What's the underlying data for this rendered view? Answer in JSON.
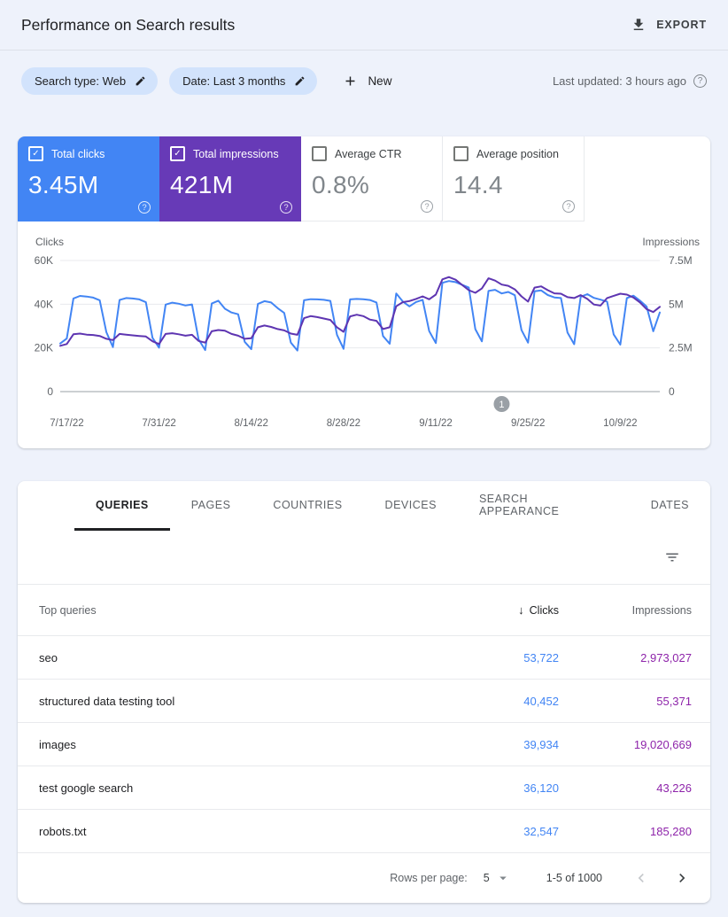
{
  "header": {
    "title": "Performance on Search results",
    "export_label": "EXPORT"
  },
  "filters": {
    "chips": [
      {
        "label": "Search type: Web"
      },
      {
        "label": "Date: Last 3 months"
      }
    ],
    "new_label": "New",
    "last_updated": "Last updated: 3 hours ago"
  },
  "metrics": [
    {
      "label": "Total clicks",
      "value": "3.45M",
      "checked": true,
      "color": "#4285f4"
    },
    {
      "label": "Total impressions",
      "value": "421M",
      "checked": true,
      "color": "#673ab7"
    },
    {
      "label": "Average CTR",
      "value": "0.8%",
      "checked": false,
      "color": "#ffffff"
    },
    {
      "label": "Average position",
      "value": "14.4",
      "checked": false,
      "color": "#ffffff"
    }
  ],
  "chart_data": {
    "type": "line",
    "left_axis": {
      "title": "Clicks",
      "ticks": [
        "60K",
        "40K",
        "20K",
        "0"
      ],
      "max": 60,
      "unit": "K"
    },
    "right_axis": {
      "title": "Impressions",
      "ticks": [
        "7.5M",
        "5M",
        "2.5M",
        "0"
      ],
      "max": 7.5,
      "unit": "M"
    },
    "x_ticks": [
      {
        "label": "7/17/22",
        "day": 1
      },
      {
        "label": "7/31/22",
        "day": 15
      },
      {
        "label": "8/14/22",
        "day": 29
      },
      {
        "label": "8/28/22",
        "day": 43
      },
      {
        "label": "9/11/22",
        "day": 57
      },
      {
        "label": "9/25/22",
        "day": 71
      },
      {
        "label": "10/9/22",
        "day": 85
      }
    ],
    "annotation": {
      "label": "1",
      "day": 67
    },
    "series": [
      {
        "name": "Clicks",
        "axis": "left",
        "unit": "K",
        "color": "#4285f4",
        "values": [
          22.0,
          24.3,
          42.6,
          43.8,
          43.5,
          43.0,
          41.8,
          27.2,
          20.4,
          41.9,
          42.8,
          42.6,
          42.2,
          40.9,
          24.6,
          20.1,
          39.8,
          40.7,
          40.2,
          39.4,
          39.9,
          23.9,
          19.0,
          40.3,
          41.6,
          37.9,
          36.2,
          35.4,
          22.8,
          19.4,
          40.1,
          41.4,
          40.8,
          38.2,
          36.0,
          22.4,
          18.8,
          41.8,
          42.3,
          42.2,
          42.0,
          41.5,
          26.0,
          19.6,
          42.2,
          42.4,
          42.3,
          41.9,
          40.8,
          25.4,
          21.9,
          44.9,
          41.2,
          39.0,
          41.0,
          42.0,
          27.7,
          22.2,
          49.8,
          50.6,
          50.1,
          48.9,
          47.6,
          28.6,
          23.0,
          46.1,
          46.6,
          44.9,
          45.6,
          44.1,
          28.2,
          22.4,
          45.9,
          46.3,
          44.2,
          43.1,
          42.8,
          27.0,
          21.7,
          43.4,
          44.6,
          42.9,
          42.1,
          41.2,
          26.2,
          21.5,
          42.8,
          43.9,
          41.6,
          38.9,
          27.6,
          36.2
        ]
      },
      {
        "name": "Impressions",
        "axis": "right",
        "unit": "M",
        "color": "#5e35b1",
        "values": [
          2.62,
          2.72,
          3.28,
          3.32,
          3.26,
          3.24,
          3.18,
          3.02,
          2.95,
          3.3,
          3.26,
          3.22,
          3.18,
          3.15,
          2.88,
          2.72,
          3.3,
          3.34,
          3.28,
          3.2,
          3.25,
          2.9,
          2.8,
          3.45,
          3.52,
          3.48,
          3.3,
          3.2,
          3.02,
          3.05,
          3.68,
          3.78,
          3.7,
          3.58,
          3.5,
          3.32,
          3.25,
          4.2,
          4.32,
          4.26,
          4.18,
          4.1,
          3.68,
          3.42,
          4.3,
          4.4,
          4.32,
          4.12,
          4.05,
          3.58,
          3.68,
          4.88,
          5.12,
          5.18,
          5.3,
          5.45,
          5.28,
          5.55,
          6.42,
          6.55,
          6.4,
          6.1,
          5.8,
          5.65,
          5.9,
          6.48,
          6.35,
          6.12,
          6.05,
          5.85,
          5.45,
          5.15,
          5.95,
          6.02,
          5.8,
          5.62,
          5.6,
          5.4,
          5.35,
          5.52,
          5.3,
          4.98,
          4.92,
          5.35,
          5.48,
          5.6,
          5.55,
          5.38,
          5.1,
          4.72,
          4.55,
          4.85
        ]
      }
    ]
  },
  "table": {
    "tabs": [
      {
        "label": "QUERIES",
        "active": true
      },
      {
        "label": "PAGES",
        "active": false
      },
      {
        "label": "COUNTRIES",
        "active": false
      },
      {
        "label": "DEVICES",
        "active": false
      },
      {
        "label": "SEARCH APPEARANCE",
        "active": false
      },
      {
        "label": "DATES",
        "active": false
      }
    ],
    "header": {
      "query": "Top queries",
      "clicks": "Clicks",
      "impressions": "Impressions",
      "sort_icon": "↓"
    },
    "rows": [
      {
        "query": "seo",
        "clicks": "53,722",
        "impressions": "2,973,027"
      },
      {
        "query": "structured data testing tool",
        "clicks": "40,452",
        "impressions": "55,371"
      },
      {
        "query": "images",
        "clicks": "39,934",
        "impressions": "19,020,669"
      },
      {
        "query": "test google search",
        "clicks": "36,120",
        "impressions": "43,226"
      },
      {
        "query": "robots.txt",
        "clicks": "32,547",
        "impressions": "185,280"
      }
    ],
    "pagination": {
      "rows_per_page_label": "Rows per page:",
      "rows_per_page": "5",
      "range": "1-5 of 1000"
    }
  }
}
